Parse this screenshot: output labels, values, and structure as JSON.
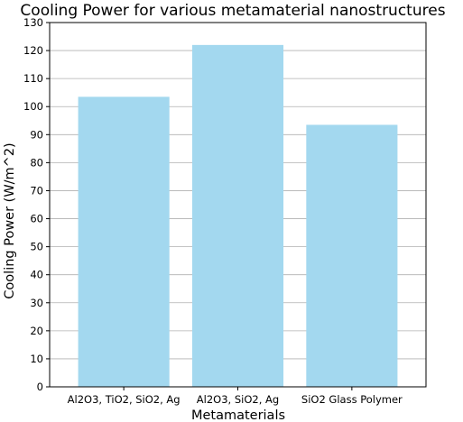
{
  "chart_data": {
    "type": "bar",
    "title": "Cooling Power for various metamaterial nanostructures",
    "xlabel": "Metamaterials",
    "ylabel": "Cooling Power (W/m^2)",
    "categories": [
      "Al2O3, TiO2, SiO2, Ag",
      "Al2O3, SiO2, Ag",
      "SiO2 Glass Polymer"
    ],
    "values": [
      103.5,
      122,
      93.5
    ],
    "ylim": [
      0,
      130
    ],
    "yticks": [
      0,
      10,
      20,
      30,
      40,
      50,
      60,
      70,
      80,
      90,
      100,
      110,
      120,
      130
    ],
    "grid": "horizontal",
    "bar_color": "#a3d8ef",
    "grid_color": "#b0b0b0"
  }
}
